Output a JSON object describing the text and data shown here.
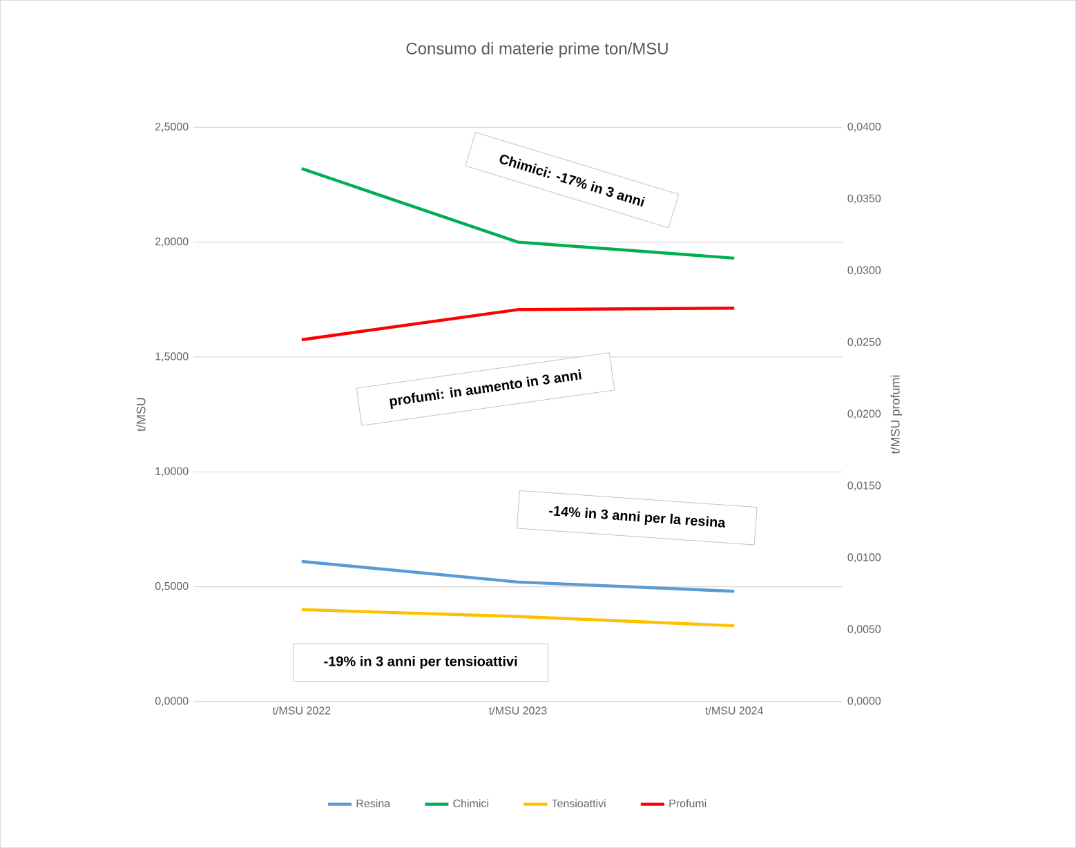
{
  "chart_data": {
    "type": "line",
    "title": "Consumo di materie prime ton/MSU",
    "ylabel": "t/MSU",
    "y2label": "t/MSU profumi",
    "categories": [
      "t/MSU 2022",
      "t/MSU 2023",
      "t/MSU 2024"
    ],
    "series": [
      {
        "name": "Resina",
        "color": "#5b9bd5",
        "values": [
          0.61,
          0.52,
          0.48
        ]
      },
      {
        "name": "Chimici",
        "color": "#00b050",
        "values": [
          2.32,
          2.0,
          1.93
        ]
      },
      {
        "name": "Tensioattivi",
        "color": "#ffc000",
        "values": [
          0.4,
          0.37,
          0.33
        ]
      },
      {
        "name": "Profumi",
        "color": "#ff0000",
        "axis": "y2",
        "values": [
          0.0252,
          0.0273,
          0.0274
        ]
      }
    ],
    "ylim": [
      0,
      2.5
    ],
    "yticks": [
      {
        "value": 0,
        "label": "0,0000"
      },
      {
        "value": 0.5,
        "label": "0,5000"
      },
      {
        "value": 1,
        "label": "1,0000"
      },
      {
        "value": 1.5,
        "label": "1,5000"
      },
      {
        "value": 2,
        "label": "2,0000"
      },
      {
        "value": 2.5,
        "label": "2,5000"
      }
    ],
    "y2lim": [
      0,
      0.04
    ],
    "y2ticks": [
      {
        "value": 0,
        "label": "0,0000"
      },
      {
        "value": 0.005,
        "label": "0,0050"
      },
      {
        "value": 0.01,
        "label": "0,0100"
      },
      {
        "value": 0.015,
        "label": "0,0150"
      },
      {
        "value": 0.02,
        "label": "0,0200"
      },
      {
        "value": 0.025,
        "label": "0,0250"
      },
      {
        "value": 0.03,
        "label": "0,0300"
      },
      {
        "value": 0.035,
        "label": "0,0350"
      },
      {
        "value": 0.04,
        "label": "0,0400"
      }
    ],
    "grid": "y",
    "legend": "bottom",
    "annotations": [
      "Chimici: -17% in 3 anni",
      "profumi: in aumento in 3 anni",
      "-14% in 3 anni per la resina",
      "-19% in 3 anni per tensioattivi"
    ]
  }
}
